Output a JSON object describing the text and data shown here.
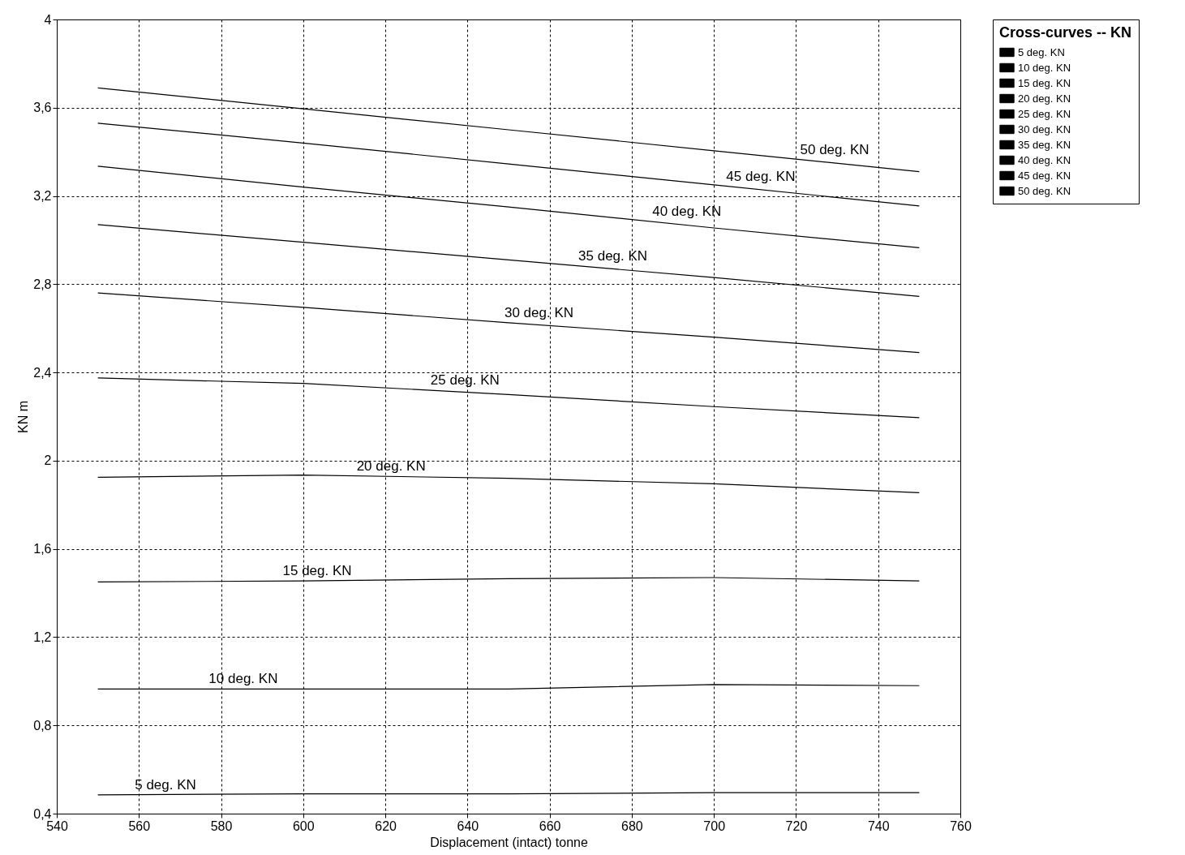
{
  "chart_data": {
    "type": "line",
    "xlabel": "Displacement (intact)  tonne",
    "ylabel": "KN  m",
    "legend_title": "Cross-curves -- KN",
    "legend": "top right",
    "grid": true,
    "x": [
      550,
      600,
      650,
      700,
      750
    ],
    "xlim": [
      540,
      760
    ],
    "xticks": [
      540,
      560,
      580,
      600,
      620,
      640,
      660,
      680,
      700,
      720,
      740,
      760
    ],
    "ylim": [
      0.4,
      4
    ],
    "yticks": [
      {
        "value": 0.4,
        "label": "0,4"
      },
      {
        "value": 0.8,
        "label": "0,8"
      },
      {
        "value": 1.2,
        "label": "1,2"
      },
      {
        "value": 1.6,
        "label": "1,6"
      },
      {
        "value": 2,
        "label": "2"
      },
      {
        "value": 2.4,
        "label": "2,4"
      },
      {
        "value": 2.8,
        "label": "2,8"
      },
      {
        "value": 3.2,
        "label": "3,2"
      },
      {
        "value": 3.6,
        "label": "3,6"
      },
      {
        "value": 4,
        "label": "4"
      }
    ],
    "series": [
      {
        "name": "5 deg.  KN",
        "color": "#000000",
        "values": [
          0.485,
          0.49,
          0.49,
          0.495,
          0.495
        ]
      },
      {
        "name": "10 deg.  KN",
        "color": "#000000",
        "values": [
          0.965,
          0.965,
          0.965,
          0.985,
          0.98
        ]
      },
      {
        "name": "15 deg.  KN",
        "color": "#000000",
        "values": [
          1.45,
          1.455,
          1.465,
          1.47,
          1.455
        ]
      },
      {
        "name": "20 deg.  KN",
        "color": "#000000",
        "values": [
          1.925,
          1.935,
          1.92,
          1.895,
          1.855
        ]
      },
      {
        "name": "25 deg.  KN",
        "color": "#000000",
        "values": [
          2.375,
          2.35,
          2.3,
          2.245,
          2.195
        ]
      },
      {
        "name": "30 deg.  KN",
        "color": "#000000",
        "values": [
          2.76,
          2.695,
          2.625,
          2.56,
          2.49
        ]
      },
      {
        "name": "35 deg.  KN",
        "color": "#000000",
        "values": [
          3.07,
          2.99,
          2.91,
          2.83,
          2.745
        ]
      },
      {
        "name": "40 deg.  KN",
        "color": "#000000",
        "values": [
          3.335,
          3.24,
          3.15,
          3.055,
          2.965
        ]
      },
      {
        "name": "45 deg.  KN",
        "color": "#000000",
        "values": [
          3.53,
          3.44,
          3.345,
          3.25,
          3.155
        ]
      },
      {
        "name": "50 deg.  KN",
        "color": "#000000",
        "values": [
          3.69,
          3.595,
          3.5,
          3.405,
          3.31
        ]
      }
    ]
  }
}
